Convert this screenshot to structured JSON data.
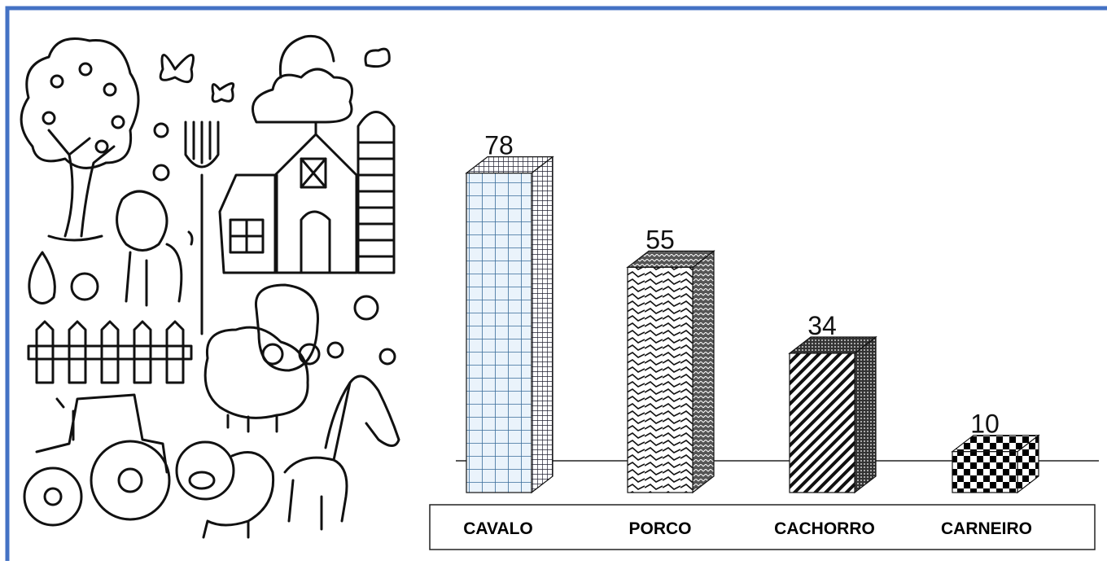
{
  "chart_data": {
    "type": "bar3d",
    "categories": [
      "CAVALO",
      "PORCO",
      "CACHORRO",
      "CARNEIRO"
    ],
    "values": [
      78,
      55,
      34,
      10
    ]
  }
}
